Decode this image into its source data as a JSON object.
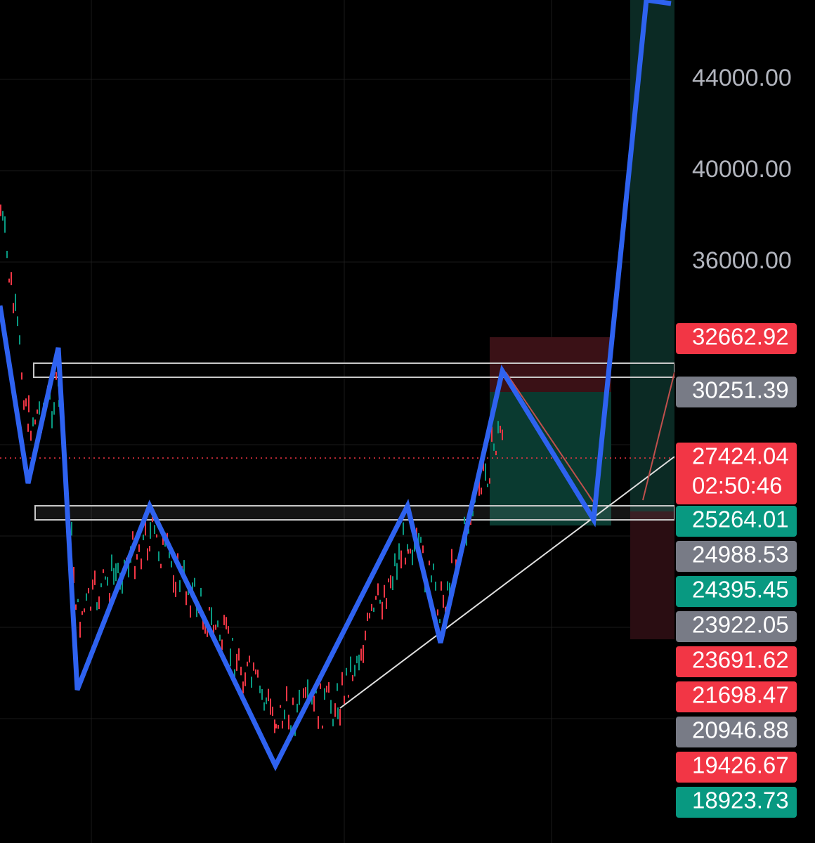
{
  "price_axis": {
    "labels": [
      "44000.00",
      "40000.00",
      "36000.00"
    ]
  },
  "price_tags": [
    {
      "label": "32662.92",
      "color": "#f23645"
    },
    {
      "label": "30251.39",
      "color": "#787b86"
    },
    {
      "label": "27424.04",
      "color": "#f23645"
    },
    {
      "label": "25264.01",
      "color": "#089981"
    },
    {
      "label": "24988.53",
      "color": "#787b86"
    },
    {
      "label": "24395.45",
      "color": "#089981"
    },
    {
      "label": "23922.05",
      "color": "#787b86"
    },
    {
      "label": "23691.62",
      "color": "#f23645"
    },
    {
      "label": "21698.47",
      "color": "#f23645"
    },
    {
      "label": "20946.88",
      "color": "#787b86"
    },
    {
      "label": "19426.67",
      "color": "#f23645"
    },
    {
      "label": "18923.73",
      "color": "#089981"
    }
  ],
  "countdown": "02:50:46"
}
